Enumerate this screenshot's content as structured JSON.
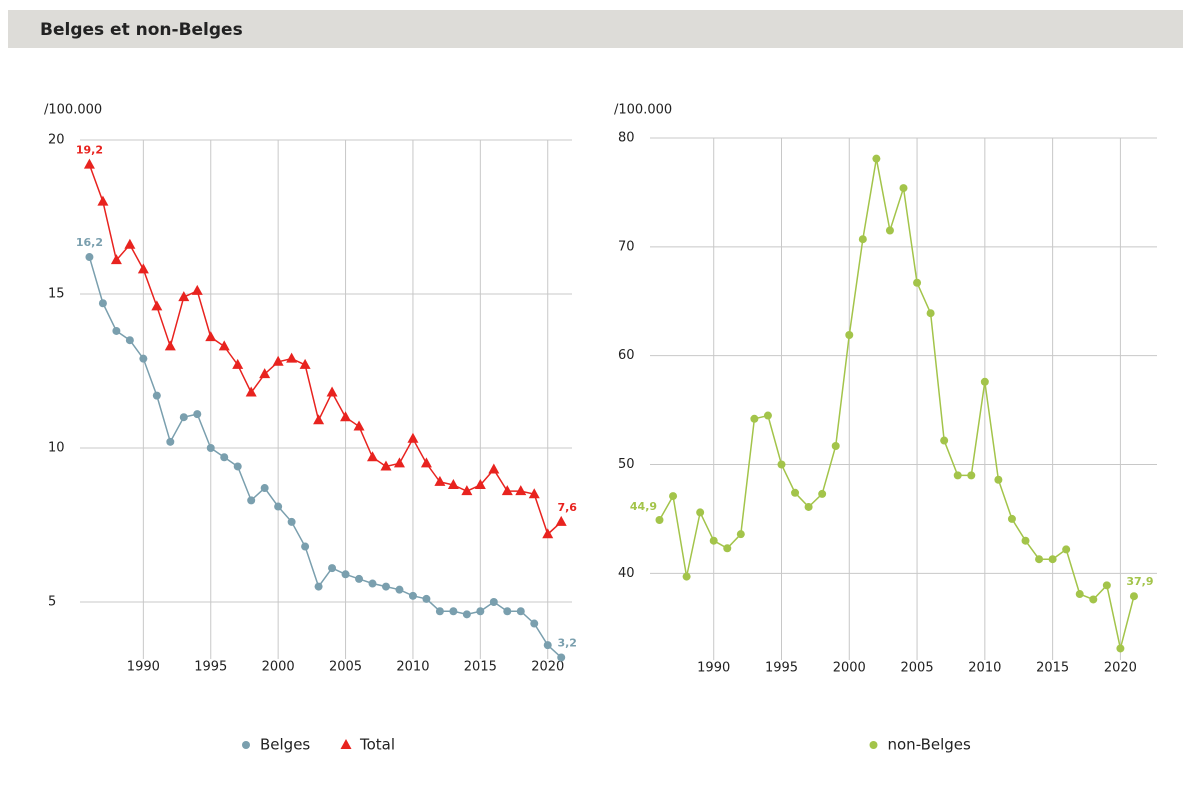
{
  "header": {
    "title": "Belges et non-Belges"
  },
  "chart_data": [
    {
      "type": "line",
      "y_label": "/100.000",
      "x": [
        1986,
        1987,
        1988,
        1989,
        1990,
        1991,
        1992,
        1993,
        1994,
        1995,
        1996,
        1997,
        1998,
        1999,
        2000,
        2001,
        2002,
        2003,
        2004,
        2005,
        2006,
        2007,
        2008,
        2009,
        2010,
        2011,
        2012,
        2013,
        2014,
        2015,
        2016,
        2017,
        2018,
        2019,
        2020,
        2021
      ],
      "xlim": [
        1985.3,
        2021.8
      ],
      "xticks": [
        1990,
        1995,
        2000,
        2005,
        2010,
        2015,
        2020
      ],
      "ylim": [
        2.5,
        20
      ],
      "yticks": [
        5,
        10,
        15,
        20
      ],
      "grid": true,
      "legend": "bottom",
      "series": [
        {
          "name": "Belges",
          "color": "#7a9fae",
          "marker": "circle",
          "values": [
            16.2,
            14.7,
            13.8,
            13.5,
            12.9,
            11.7,
            10.2,
            11.0,
            11.1,
            10.0,
            9.7,
            9.4,
            8.3,
            8.7,
            8.1,
            7.6,
            6.8,
            5.5,
            6.1,
            5.9,
            5.75,
            5.6,
            5.5,
            5.4,
            5.2,
            5.1,
            4.7,
            4.7,
            4.6,
            4.7,
            5.0,
            4.7,
            4.7,
            4.3,
            3.6,
            3.2
          ],
          "value_labels": [
            "16,2",
            null,
            null,
            null,
            null,
            null,
            null,
            null,
            null,
            null,
            null,
            null,
            null,
            null,
            null,
            null,
            null,
            null,
            null,
            null,
            null,
            null,
            null,
            null,
            null,
            null,
            null,
            null,
            null,
            null,
            null,
            null,
            null,
            null,
            null,
            "3,2"
          ]
        },
        {
          "name": "Total",
          "color": "#e8231f",
          "marker": "triangle",
          "values": [
            19.2,
            18.0,
            16.1,
            16.6,
            15.8,
            14.6,
            13.3,
            14.9,
            15.1,
            13.6,
            13.3,
            12.7,
            11.8,
            12.4,
            12.8,
            12.9,
            12.7,
            10.9,
            11.8,
            11.0,
            10.7,
            9.7,
            9.4,
            9.5,
            10.3,
            9.5,
            8.9,
            8.8,
            8.6,
            8.8,
            9.3,
            8.6,
            8.6,
            8.5,
            7.2,
            7.6
          ],
          "value_labels": [
            "19,2",
            null,
            null,
            null,
            null,
            null,
            null,
            null,
            null,
            null,
            null,
            null,
            null,
            null,
            null,
            null,
            null,
            null,
            null,
            null,
            null,
            null,
            null,
            null,
            null,
            null,
            null,
            null,
            null,
            null,
            null,
            null,
            null,
            null,
            null,
            "7,6"
          ]
        }
      ]
    },
    {
      "type": "line",
      "y_label": "/100.000",
      "x": [
        1986,
        1987,
        1988,
        1989,
        1990,
        1991,
        1992,
        1993,
        1994,
        1995,
        1996,
        1997,
        1998,
        1999,
        2000,
        2001,
        2002,
        2003,
        2004,
        2005,
        2006,
        2007,
        2008,
        2009,
        2010,
        2011,
        2012,
        2013,
        2014,
        2015,
        2016,
        2017,
        2018,
        2019,
        2020,
        2021
      ],
      "xlim": [
        1985.3,
        2022.7
      ],
      "xticks": [
        1990,
        1995,
        2000,
        2005,
        2010,
        2015,
        2020
      ],
      "ylim": [
        30.2,
        80
      ],
      "yticks": [
        40,
        50,
        60,
        70,
        80
      ],
      "grid": true,
      "legend": "bottom",
      "series": [
        {
          "name": "non-Belges",
          "color": "#a3c44a",
          "marker": "circle",
          "values": [
            44.9,
            47.1,
            39.7,
            45.6,
            43.0,
            42.3,
            43.6,
            54.2,
            54.5,
            50.0,
            47.4,
            46.1,
            47.3,
            51.7,
            61.9,
            70.7,
            78.1,
            71.5,
            75.4,
            66.7,
            63.9,
            52.2,
            49.0,
            49.0,
            57.6,
            48.6,
            45.0,
            43.0,
            41.3,
            41.3,
            42.2,
            38.1,
            37.6,
            38.9,
            33.1,
            37.9
          ],
          "value_labels": [
            "44,9",
            null,
            null,
            null,
            null,
            null,
            null,
            null,
            null,
            null,
            null,
            null,
            null,
            null,
            null,
            null,
            null,
            null,
            null,
            null,
            null,
            null,
            null,
            null,
            null,
            null,
            null,
            null,
            null,
            null,
            null,
            null,
            null,
            null,
            null,
            "37,9"
          ]
        }
      ]
    }
  ]
}
